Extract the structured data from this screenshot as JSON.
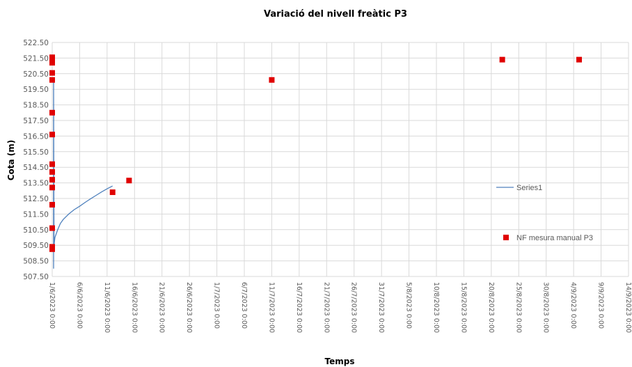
{
  "chart_data": {
    "type": "scatter",
    "title": "Variació del nivell freàtic P3",
    "xlabel": "Temps",
    "ylabel": "Cota (m)",
    "ylim": [
      507.5,
      522.5
    ],
    "ytick_labels": [
      "522.50",
      "521.50",
      "520.50",
      "519.50",
      "518.50",
      "517.50",
      "516.50",
      "515.50",
      "514.50",
      "513.50",
      "512.50",
      "511.50",
      "510.50",
      "509.50",
      "508.50",
      "507.50"
    ],
    "yticks": [
      522.5,
      521.5,
      520.5,
      519.5,
      518.5,
      517.5,
      516.5,
      515.5,
      514.5,
      513.5,
      512.5,
      511.5,
      510.5,
      509.5,
      508.5,
      507.5
    ],
    "xlim": [
      "2023-06-01",
      "2023-09-14"
    ],
    "xtick_labels": [
      "1/6/2023 0:00",
      "6/6/2023 0:00",
      "11/6/2023 0:00",
      "16/6/2023 0:00",
      "21/6/2023 0:00",
      "26/6/2023 0:00",
      "1/7/2023 0:00",
      "6/7/2023 0:00",
      "11/7/2023 0:00",
      "16/7/2023 0:00",
      "21/7/2023 0:00",
      "26/7/2023 0:00",
      "31/7/2023 0:00",
      "5/8/2023 0:00",
      "10/8/2023 0:00",
      "15/8/2023 0:00",
      "20/8/2023 0:00",
      "25/8/2023 0:00",
      "30/8/2023 0:00",
      "4/9/2023 0:00",
      "9/9/2023 0:00",
      "14/9/2023 0:00"
    ],
    "grid": true,
    "legend_position": "right",
    "series": [
      {
        "name": "Series1",
        "kind": "line",
        "color": "#4f81bd",
        "x": [
          "2023-06-01 06:00",
          "2023-06-01 06:00",
          "2023-06-01 08:00",
          "2023-06-01 12:00",
          "2023-06-02 00:00",
          "2023-06-02 12:00",
          "2023-06-03 00:00",
          "2023-06-04 00:00",
          "2023-06-05 00:00",
          "2023-06-06 00:00",
          "2023-06-07 00:00",
          "2023-06-08 00:00",
          "2023-06-09 00:00",
          "2023-06-10 00:00",
          "2023-06-11 00:00",
          "2023-06-12 00:00"
        ],
        "y": [
          508.0,
          520.0,
          509.5,
          510.0,
          510.5,
          510.9,
          511.15,
          511.5,
          511.78,
          512.0,
          512.25,
          512.48,
          512.7,
          512.92,
          513.12,
          513.3
        ]
      },
      {
        "name": "NF mesura manual P3",
        "kind": "scatter",
        "color": "#e00000",
        "x": [
          "2023-06-01",
          "2023-06-01",
          "2023-06-01",
          "2023-06-01",
          "2023-06-01",
          "2023-06-01",
          "2023-06-01",
          "2023-06-01",
          "2023-06-01",
          "2023-06-01",
          "2023-06-01",
          "2023-06-01",
          "2023-06-01",
          "2023-06-01",
          "2023-06-01",
          "2023-06-12",
          "2023-06-15",
          "2023-07-11",
          "2023-08-22",
          "2023-09-05"
        ],
        "y": [
          521.55,
          521.2,
          520.55,
          520.1,
          518.0,
          516.6,
          514.7,
          514.2,
          513.7,
          513.2,
          512.1,
          510.6,
          509.4,
          509.25,
          521.4,
          512.9,
          513.65,
          520.1,
          521.4,
          521.4
        ]
      }
    ]
  }
}
